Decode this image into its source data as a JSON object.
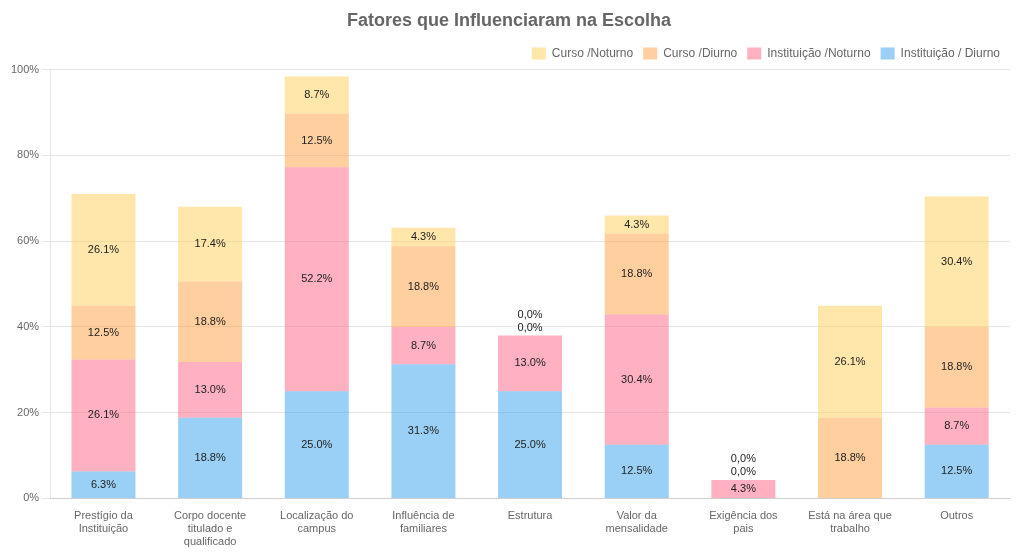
{
  "chart_data": {
    "type": "bar",
    "title": "Fatores que Influenciaram na Escolha",
    "categories": [
      "Prestígio da\nInstituição",
      "Corpo docente\ntitulado e\nqualificado",
      "Localização do\ncampus",
      "Influência de\nfamiliares",
      "Estrutura",
      "Valor da\nmensalidade",
      "Exigência dos\npais",
      "Está na área que\ntrabalho",
      "Outros"
    ],
    "series": [
      {
        "name": "Instituição / Diurno",
        "values": [
          6.3,
          18.8,
          25.0,
          31.3,
          25.0,
          12.5,
          0.0,
          0.0,
          12.5
        ],
        "value_labels": [
          "6.3%",
          "18.8%",
          "25.0%",
          "31.3%",
          "25.0%",
          "12.5%",
          null,
          null,
          "12.5%"
        ]
      },
      {
        "name": "Instituição /Noturno",
        "values": [
          26.1,
          13.0,
          52.2,
          8.7,
          13.0,
          30.4,
          4.3,
          0.0,
          8.7
        ],
        "value_labels": [
          "26.1%",
          "13.0%",
          "52.2%",
          "8.7%",
          "13.0%",
          "30.4%",
          "4.3%",
          null,
          "8.7%"
        ]
      },
      {
        "name": "Curso /Diurno",
        "values": [
          12.5,
          18.8,
          12.5,
          18.8,
          0.0,
          18.8,
          0.0,
          18.8,
          18.8
        ],
        "value_labels": [
          "12.5%",
          "18.8%",
          "12.5%",
          "18.8%",
          "0,0%",
          "18.8%",
          "0,0%",
          "18.8%",
          "18.8%"
        ]
      },
      {
        "name": "Curso /Noturno",
        "values": [
          26.1,
          17.4,
          8.7,
          4.3,
          0.0,
          4.3,
          0.0,
          26.1,
          30.4
        ],
        "value_labels": [
          "26.1%",
          "17.4%",
          "8.7%",
          "4.3%",
          "0,0%",
          "4.3%",
          "0,0%",
          "26.1%",
          "30.4%"
        ]
      }
    ],
    "stacked": true,
    "data_labels": true,
    "ylim": [
      0,
      100
    ],
    "yticks": [
      {
        "value": 0,
        "label": "0%"
      },
      {
        "value": 20,
        "label": "20%"
      },
      {
        "value": 40,
        "label": "40%"
      },
      {
        "value": 60,
        "label": "60%"
      },
      {
        "value": 80,
        "label": "80%"
      },
      {
        "value": 100,
        "label": "100%"
      }
    ],
    "grid": true,
    "legend": "upper right"
  }
}
